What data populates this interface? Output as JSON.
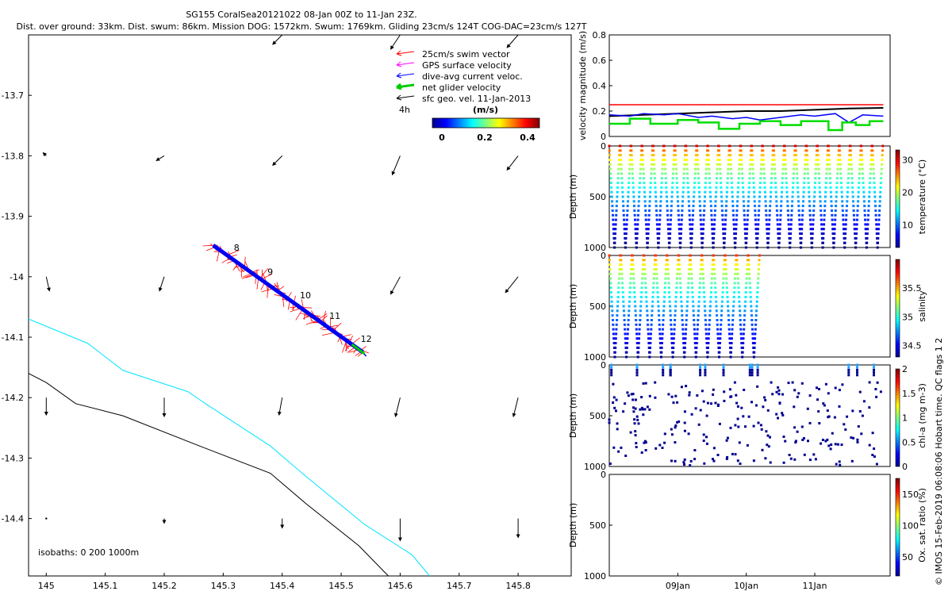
{
  "header": {
    "line1": "SG155 CoralSea20121022 08-Jan 00Z to 11-Jan 23Z.",
    "line2": "Dist. over ground: 33km. Dist. swum: 86km. Mission DOG: 1572km. Swum: 1769km. Gliding 23cm/s 124T COG-DAC=23cm/s 127T"
  },
  "map": {
    "x_ticks": [
      "145",
      "145.1",
      "145.2",
      "145.3",
      "145.4",
      "145.5",
      "145.6",
      "145.7",
      "145.8"
    ],
    "y_ticks": [
      "-13.7",
      "-13.8",
      "-13.9",
      "-14",
      "-14.1",
      "-14.2",
      "-14.3",
      "-14.4"
    ],
    "xlim": [
      144.97,
      145.89
    ],
    "ylim": [
      -14.495,
      -13.6
    ],
    "legend": [
      {
        "label": "25cm/s swim vector",
        "color": "#ff0000"
      },
      {
        "label": "GPS surface velocity",
        "color": "#ff00ff"
      },
      {
        "label": "dive-avg current veloc.",
        "color": "#0000ff"
      },
      {
        "label": "net glider velocity",
        "color": "#00cc00"
      },
      {
        "label": "sfc geo. vel. 11-Jan-2013",
        "color": "#000000"
      }
    ],
    "interval_label": "4h",
    "colorbar": {
      "unit": "(m/s)",
      "ticks": [
        "0",
        "0.2",
        "0.4"
      ],
      "range": [
        0,
        0.5
      ]
    },
    "isobath_label": "isobaths: 0   200  1000m",
    "isobaths": [
      {
        "depth": "200m",
        "color": "#00e5ff",
        "points": [
          [
            144.97,
            -14.07
          ],
          [
            145.07,
            -14.11
          ],
          [
            145.13,
            -14.155
          ],
          [
            145.24,
            -14.19
          ],
          [
            145.27,
            -14.21
          ],
          [
            145.38,
            -14.28
          ],
          [
            145.44,
            -14.33
          ],
          [
            145.54,
            -14.41
          ],
          [
            145.62,
            -14.46
          ],
          [
            145.65,
            -14.495
          ]
        ]
      },
      {
        "depth": "1000m",
        "color": "#000000",
        "points": [
          [
            144.97,
            -14.16
          ],
          [
            145.0,
            -14.175
          ],
          [
            145.05,
            -14.21
          ],
          [
            145.13,
            -14.23
          ],
          [
            145.26,
            -14.28
          ],
          [
            145.38,
            -14.325
          ],
          [
            145.44,
            -14.375
          ],
          [
            145.53,
            -14.445
          ],
          [
            145.58,
            -14.495
          ]
        ]
      }
    ],
    "track": {
      "start": [
        145.283,
        -13.948
      ],
      "end": [
        145.537,
        -14.125
      ]
    },
    "time_labels": [
      {
        "text": "8",
        "lon": 145.318,
        "lat": -13.957
      },
      {
        "text": "9",
        "lon": 145.375,
        "lat": -13.997
      },
      {
        "text": "10",
        "lon": 145.43,
        "lat": -14.036
      },
      {
        "text": "11",
        "lon": 145.48,
        "lat": -14.07
      },
      {
        "text": "12",
        "lon": 145.533,
        "lat": -14.108
      }
    ],
    "geo_vectors": [
      {
        "lon": 145.0,
        "lat": -13.8,
        "u": -0.2,
        "v": 0.2
      },
      {
        "lon": 145.2,
        "lat": -13.8,
        "u": -0.5,
        "v": -0.3
      },
      {
        "lon": 145.4,
        "lat": -13.8,
        "u": -0.6,
        "v": -0.6
      },
      {
        "lon": 145.6,
        "lat": -13.8,
        "u": -0.5,
        "v": -1.2
      },
      {
        "lon": 145.8,
        "lat": -13.8,
        "u": -0.7,
        "v": -0.9
      },
      {
        "lon": 145.4,
        "lat": -13.6,
        "u": -0.6,
        "v": -0.6
      },
      {
        "lon": 145.6,
        "lat": -13.6,
        "u": -0.6,
        "v": -0.9
      },
      {
        "lon": 145.8,
        "lat": -13.6,
        "u": -0.7,
        "v": -0.8
      },
      {
        "lon": 145.0,
        "lat": -14.0,
        "u": 0.2,
        "v": -0.9
      },
      {
        "lon": 145.2,
        "lat": -14.0,
        "u": -0.3,
        "v": -0.9
      },
      {
        "lon": 145.6,
        "lat": -14.0,
        "u": -0.6,
        "v": -1.1
      },
      {
        "lon": 145.8,
        "lat": -14.0,
        "u": -0.8,
        "v": -1.0
      },
      {
        "lon": 145.0,
        "lat": -14.2,
        "u": 0.0,
        "v": -1.1
      },
      {
        "lon": 145.2,
        "lat": -14.2,
        "u": 0.0,
        "v": -1.2
      },
      {
        "lon": 145.4,
        "lat": -14.2,
        "u": -0.2,
        "v": -1.1
      },
      {
        "lon": 145.6,
        "lat": -14.2,
        "u": -0.3,
        "v": -1.2
      },
      {
        "lon": 145.8,
        "lat": -14.2,
        "u": -0.3,
        "v": -1.2
      },
      {
        "lon": 145.0,
        "lat": -14.4,
        "u": 0.0,
        "v": 0.0
      },
      {
        "lon": 145.2,
        "lat": -14.4,
        "u": 0.0,
        "v": -0.3
      },
      {
        "lon": 145.4,
        "lat": -14.4,
        "u": 0.0,
        "v": -0.6
      },
      {
        "lon": 145.6,
        "lat": -14.4,
        "u": 0.0,
        "v": -1.4
      },
      {
        "lon": 145.8,
        "lat": -14.4,
        "u": 0.0,
        "v": -1.2
      }
    ]
  },
  "velocity": {
    "ylabel": "velocity magnitude (m/s)",
    "ylim": [
      0,
      0.8
    ],
    "y_ticks": [
      "0",
      "0.2",
      "0.4",
      "0.6",
      "0.8"
    ],
    "series": [
      {
        "color": "#ff0000",
        "points": [
          [
            8.0,
            0.25
          ],
          [
            12.0,
            0.25
          ]
        ]
      },
      {
        "color": "#000000",
        "points": [
          [
            8.0,
            0.16
          ],
          [
            8.5,
            0.17
          ],
          [
            9.0,
            0.18
          ],
          [
            9.5,
            0.19
          ],
          [
            10.0,
            0.2
          ],
          [
            10.5,
            0.2
          ],
          [
            11.0,
            0.21
          ],
          [
            11.5,
            0.22
          ],
          [
            12.0,
            0.225
          ]
        ]
      },
      {
        "color": "#0000ff",
        "points": [
          [
            8.0,
            0.17
          ],
          [
            8.3,
            0.16
          ],
          [
            8.5,
            0.18
          ],
          [
            8.8,
            0.17
          ],
          [
            9.0,
            0.18
          ],
          [
            9.3,
            0.15
          ],
          [
            9.5,
            0.16
          ],
          [
            9.8,
            0.14
          ],
          [
            10.0,
            0.15
          ],
          [
            10.2,
            0.13
          ],
          [
            10.5,
            0.15
          ],
          [
            10.8,
            0.17
          ],
          [
            11.0,
            0.16
          ],
          [
            11.3,
            0.18
          ],
          [
            11.5,
            0.11
          ],
          [
            11.7,
            0.17
          ],
          [
            12.0,
            0.16
          ]
        ]
      },
      {
        "color": "#00dd00",
        "points": [
          [
            8.0,
            0.1
          ],
          [
            8.3,
            0.1
          ],
          [
            8.3,
            0.14
          ],
          [
            8.6,
            0.14
          ],
          [
            8.6,
            0.1
          ],
          [
            9.0,
            0.1
          ],
          [
            9.0,
            0.13
          ],
          [
            9.3,
            0.13
          ],
          [
            9.3,
            0.11
          ],
          [
            9.6,
            0.11
          ],
          [
            9.6,
            0.06
          ],
          [
            9.9,
            0.06
          ],
          [
            9.9,
            0.1
          ],
          [
            10.2,
            0.1
          ],
          [
            10.2,
            0.12
          ],
          [
            10.5,
            0.12
          ],
          [
            10.5,
            0.09
          ],
          [
            10.8,
            0.09
          ],
          [
            10.8,
            0.12
          ],
          [
            11.2,
            0.12
          ],
          [
            11.2,
            0.05
          ],
          [
            11.4,
            0.05
          ],
          [
            11.4,
            0.11
          ],
          [
            11.6,
            0.11
          ],
          [
            11.6,
            0.09
          ],
          [
            11.8,
            0.09
          ],
          [
            11.8,
            0.12
          ],
          [
            12.0,
            0.12
          ]
        ]
      }
    ]
  },
  "depth_panels": [
    {
      "key": "temperature",
      "ylabel": "Depth (m)",
      "cblabel": "temperature (°C)",
      "cb_ticks": [
        "10",
        "20",
        "30"
      ],
      "cb_range": [
        3,
        33
      ],
      "top": 30,
      "bottom": 3,
      "n_dives": 25,
      "t_end": 12.0,
      "sparse": false
    },
    {
      "key": "salinity",
      "ylabel": "Depth (m)",
      "cblabel": "salinity",
      "cb_ticks": [
        "34.5",
        "35",
        "35.5"
      ],
      "cb_range": [
        34.3,
        36.0
      ],
      "top": 35.7,
      "bottom": 34.35,
      "n_dives": 13,
      "t_end": 10.2,
      "sparse": false
    },
    {
      "key": "chla",
      "ylabel": "Depth (m)",
      "cblabel": "chl-a (mg m-3)",
      "cb_ticks": [
        "0",
        "0.5",
        "1",
        "1.5",
        "2"
      ],
      "cb_range": [
        0,
        2
      ],
      "top": 0.0,
      "bottom": 0.0,
      "n_dives": 25,
      "t_end": 12.0,
      "sparse": true
    },
    {
      "key": "oxygen",
      "ylabel": "Depth (m)",
      "cblabel": "Ox. sat. ratio (%)",
      "cb_ticks": [
        "50",
        "100",
        "150"
      ],
      "cb_range": [
        20,
        175
      ],
      "top": 0,
      "bottom": 0,
      "n_dives": 0,
      "t_end": 12.0,
      "sparse": false
    }
  ],
  "depth_ticks": [
    "0",
    "500",
    "1000"
  ],
  "depth_range": [
    0,
    1000
  ],
  "time_axis": {
    "xlim": [
      8.0,
      12.1
    ],
    "ticks": [
      {
        "label": "09Jan",
        "t": 9.0
      },
      {
        "label": "10Jan",
        "t": 10.0
      },
      {
        "label": "11Jan",
        "t": 11.0
      }
    ]
  },
  "footer": "© IMOS 15-Feb-2019 06:08:06 Hobart time. QC flags 1  2",
  "chart_data": {
    "type": "scatter",
    "title": "SG155 CoralSea20121022 08-Jan 00Z to 11-Jan 23Z.",
    "xlabel": "",
    "ylabel": "",
    "xlim": [
      144.97,
      145.89
    ],
    "ylim": [
      -14.495,
      -13.6
    ],
    "series": [
      {
        "name": "dive-avg current veloc.",
        "x": [
          145.283,
          145.537
        ],
        "y": [
          -13.948,
          -14.125
        ]
      }
    ]
  }
}
